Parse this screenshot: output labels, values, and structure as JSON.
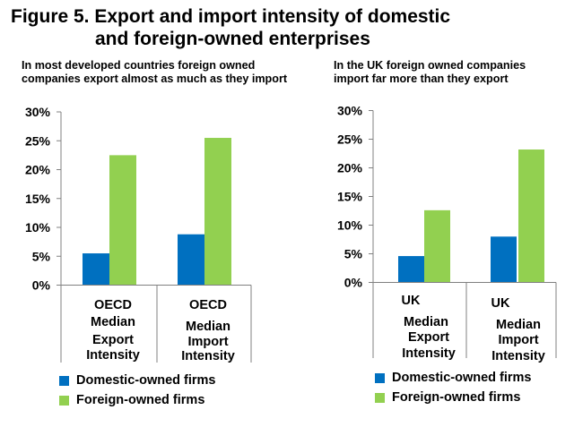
{
  "figure": {
    "title_line1": "Figure 5. Export and import intensity of domestic",
    "title_line2": "and foreign-owned enterprises"
  },
  "colors": {
    "domestic": "#0070C0",
    "foreign": "#92D050",
    "axis": "#808080"
  },
  "legend": {
    "domestic": "Domestic-owned firms",
    "foreign": "Foreign-owned firms"
  },
  "chart_data": [
    {
      "type": "bar",
      "title": "In most developed countries foreign owned companies export almost as much as they import",
      "title_lines": [
        "In most developed countries foreign owned",
        "companies export almost as much as they import"
      ],
      "categories": [
        "OECD Median Export Intensity",
        "OECD Median Import Intensity"
      ],
      "category_lines": [
        [
          "OECD",
          "Median",
          "Export",
          "Intensity"
        ],
        [
          "OECD",
          "Median",
          "Import",
          "Intensity"
        ]
      ],
      "series": [
        {
          "name": "Domestic-owned firms",
          "values": [
            5.5,
            8.8
          ]
        },
        {
          "name": "Foreign-owned firms",
          "values": [
            22.5,
            25.5
          ]
        }
      ],
      "yticks": [
        "0%",
        "5%",
        "10%",
        "15%",
        "20%",
        "25%",
        "30%"
      ],
      "ylim": [
        0,
        30
      ],
      "ylabel": "",
      "xlabel": "",
      "grid": false,
      "legend_position": "bottom-left"
    },
    {
      "type": "bar",
      "title": "In the UK foreign owned companies import far more than they export",
      "title_lines": [
        "In the UK foreign owned companies",
        "import far more than they export"
      ],
      "categories": [
        "UK Median Export Intensity",
        "UK Median Import Intensity"
      ],
      "category_lines": [
        [
          "UK",
          "Median",
          "Export",
          "Intensity"
        ],
        [
          "UK",
          "Median",
          "Import",
          "Intensity"
        ]
      ],
      "series": [
        {
          "name": "Domestic-owned firms",
          "values": [
            4.6,
            8.0
          ]
        },
        {
          "name": "Foreign-owned firms",
          "values": [
            12.6,
            23.2
          ]
        }
      ],
      "yticks": [
        "0%",
        "5%",
        "10%",
        "15%",
        "20%",
        "25%",
        "30%"
      ],
      "ylim": [
        0,
        30
      ],
      "ylabel": "",
      "xlabel": "",
      "grid": false,
      "legend_position": "bottom-left"
    }
  ]
}
